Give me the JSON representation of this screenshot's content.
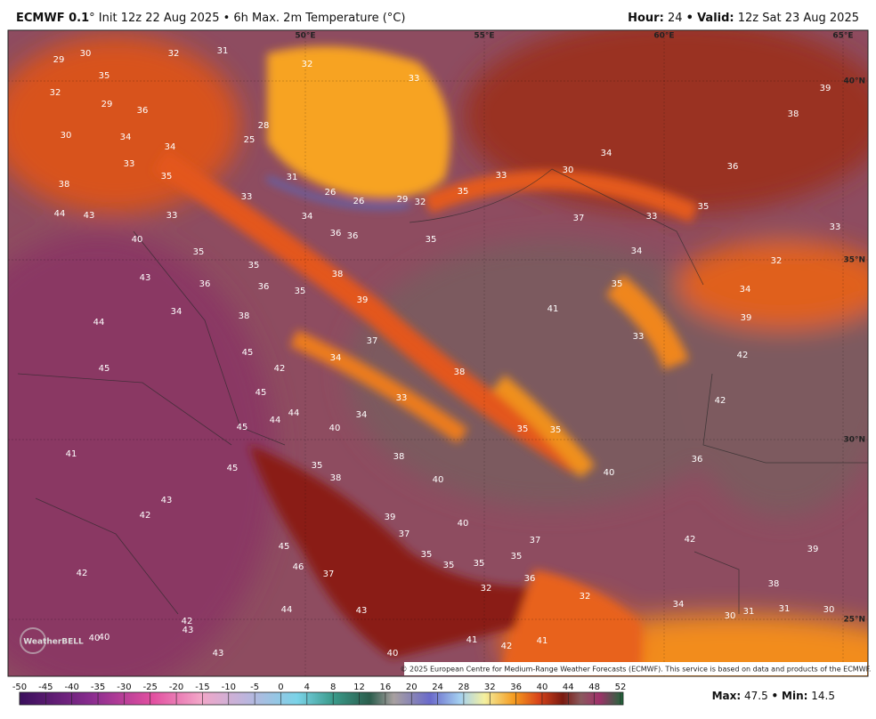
{
  "header": {
    "model": "ECMWF 0.1",
    "degree": "°",
    "title": "Init 12z 22 Aug 2025 • 6h Max. 2m Temperature (°C)",
    "hour_label": "Hour:",
    "hour": 24,
    "separator": "•",
    "valid_label": "Valid:",
    "valid": "12z Sat 23 Aug 2025"
  },
  "map": {
    "lon_labels": [
      "50°E",
      "55°E",
      "60°E",
      "65°E"
    ],
    "lat_labels": [
      "40°N",
      "35°N",
      "30°N",
      "25°N"
    ],
    "temperature_labels": [
      29,
      30,
      32,
      31,
      32,
      33,
      39,
      38,
      35,
      32,
      29,
      36,
      30,
      34,
      34,
      28,
      25,
      33,
      35,
      36,
      34,
      38,
      31,
      33,
      30,
      35,
      26,
      26,
      29,
      32,
      33,
      35,
      44,
      43,
      33,
      34,
      37,
      33,
      33,
      40,
      36,
      36,
      35,
      34,
      35,
      32,
      35,
      43,
      36,
      36,
      35,
      38,
      35,
      34,
      39,
      41,
      34,
      38,
      44,
      39,
      37,
      33,
      45,
      34,
      42,
      45,
      42,
      38,
      45,
      33,
      42,
      44,
      44,
      34,
      45,
      40,
      35,
      35,
      41,
      45,
      35,
      38,
      36,
      38,
      40,
      40,
      43,
      42,
      39,
      40,
      37,
      42,
      45,
      39,
      37,
      35,
      35,
      35,
      35,
      46,
      42,
      37,
      36,
      32,
      38,
      32,
      34,
      44,
      43,
      30,
      31,
      31,
      30,
      42,
      43,
      40,
      40,
      41,
      42,
      41,
      43,
      40
    ],
    "copyright": "© 2025 European Centre for Medium-Range Weather Forecasts (ECMWF). This service is based on data and products of the ECMWF.",
    "logo": "WeatherBELL"
  },
  "colorbar": {
    "ticks": [
      -50,
      -45,
      -40,
      -35,
      -30,
      -25,
      -20,
      -15,
      -10,
      -5,
      0,
      4,
      8,
      12,
      16,
      20,
      24,
      28,
      32,
      36,
      40,
      44,
      48,
      52
    ]
  },
  "footer": {
    "max_label": "Max:",
    "max": 47.5,
    "separator": "•",
    "min_label": "Min:",
    "min": 14.5
  }
}
